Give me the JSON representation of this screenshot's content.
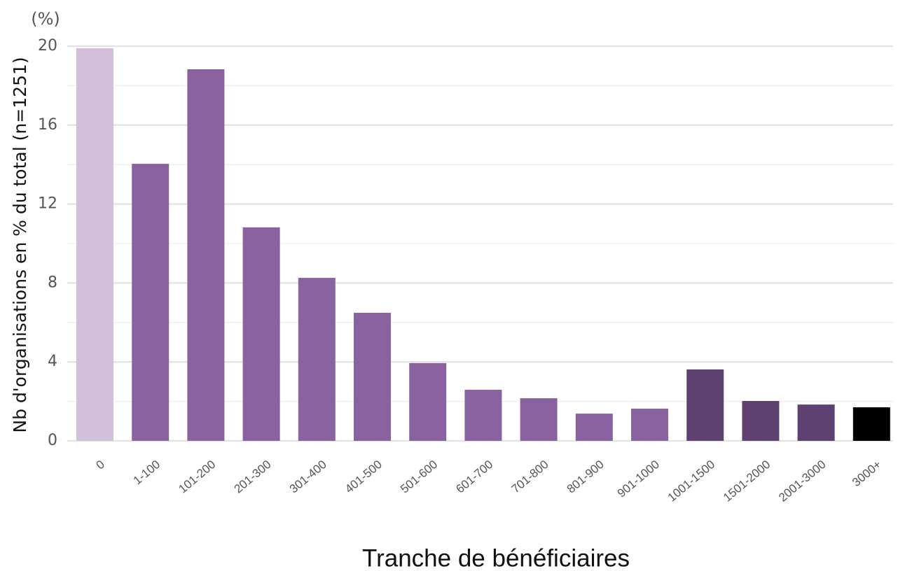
{
  "chart_data": {
    "type": "bar",
    "unit_label": "(%)",
    "ylabel": "Nb d'organisations en % du total (n=1251)",
    "xlabel": "Tranche de bénéficiaires",
    "categories": [
      "0",
      "1-100",
      "101-200",
      "201-300",
      "301-400",
      "401-500",
      "501-600",
      "601-700",
      "701-800",
      "801-900",
      "901-1000",
      "1001-1500",
      "1501-2000",
      "2001-3000",
      "3000+"
    ],
    "values": [
      19.9,
      14.04,
      18.83,
      10.82,
      8.26,
      6.49,
      3.94,
      2.59,
      2.16,
      1.38,
      1.63,
      3.62,
      2.02,
      1.84,
      1.7
    ],
    "colors": [
      "#d1bfdb",
      "#8b62a0",
      "#8b62a0",
      "#8b62a0",
      "#8b62a0",
      "#8b62a0",
      "#8b62a0",
      "#8b62a0",
      "#8b62a0",
      "#8b62a0",
      "#8b62a0",
      "#5e4170",
      "#5e4170",
      "#5e4170",
      "#000000"
    ],
    "ylim": [
      0,
      20
    ],
    "yticks": [
      0,
      4,
      8,
      12,
      16,
      20
    ],
    "minor_yticks": [
      2,
      6,
      10,
      14,
      18
    ],
    "grid": true
  }
}
